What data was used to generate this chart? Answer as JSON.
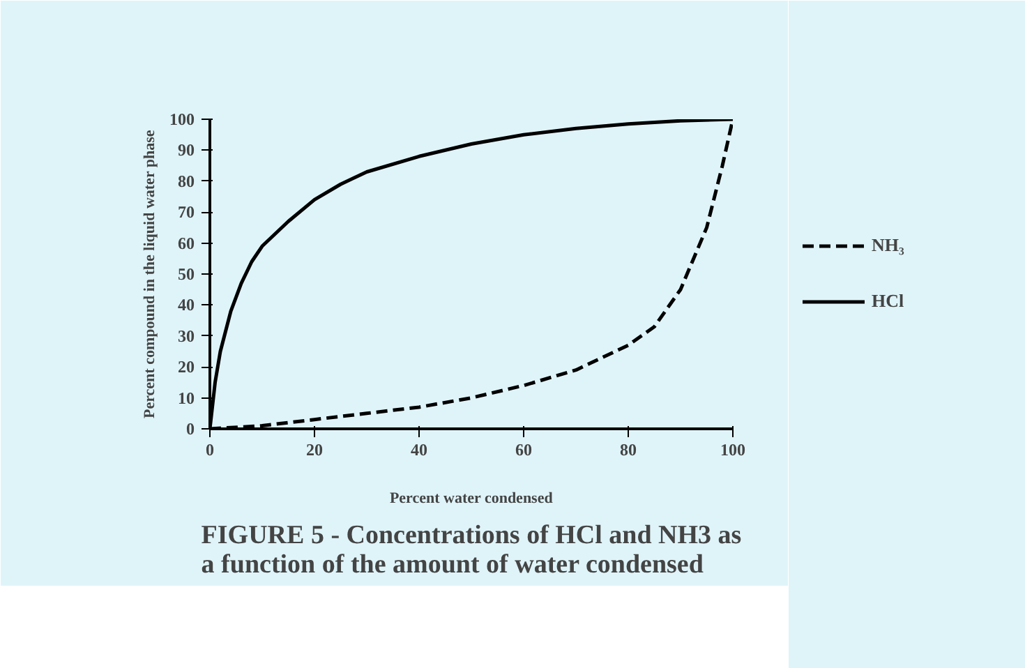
{
  "chart_data": {
    "type": "line",
    "title": "FIGURE 5 - Concentrations of HCl and NH3 as\na function of the amount of water condensed",
    "xlabel": "Percent water condensed",
    "ylabel": "Percent compound in the liquid water phase",
    "xlim": [
      0,
      100
    ],
    "ylim": [
      0,
      100
    ],
    "xticks": [
      0,
      20,
      40,
      60,
      80,
      100
    ],
    "yticks": [
      0,
      10,
      20,
      30,
      40,
      50,
      60,
      70,
      80,
      90,
      100
    ],
    "grid": false,
    "legend": "right",
    "marker": "none",
    "series": [
      {
        "name": "NH₃",
        "color": "#000000",
        "line_style": "dashed",
        "x": [
          0,
          10,
          20,
          30,
          40,
          50,
          60,
          70,
          80,
          85,
          90,
          95,
          98,
          100
        ],
        "values": [
          0,
          1,
          3,
          5,
          7,
          10,
          14,
          19,
          27,
          33,
          45,
          65,
          85,
          100
        ]
      },
      {
        "name": "HCl",
        "color": "#000000",
        "line_style": "solid",
        "x": [
          0,
          1,
          2,
          4,
          6,
          8,
          10,
          15,
          20,
          25,
          30,
          40,
          50,
          60,
          70,
          80,
          90,
          100
        ],
        "values": [
          0,
          15,
          25,
          38,
          47,
          54,
          59,
          67,
          74,
          79,
          83,
          88,
          92,
          95,
          97,
          98.5,
          99.5,
          100
        ]
      }
    ]
  }
}
